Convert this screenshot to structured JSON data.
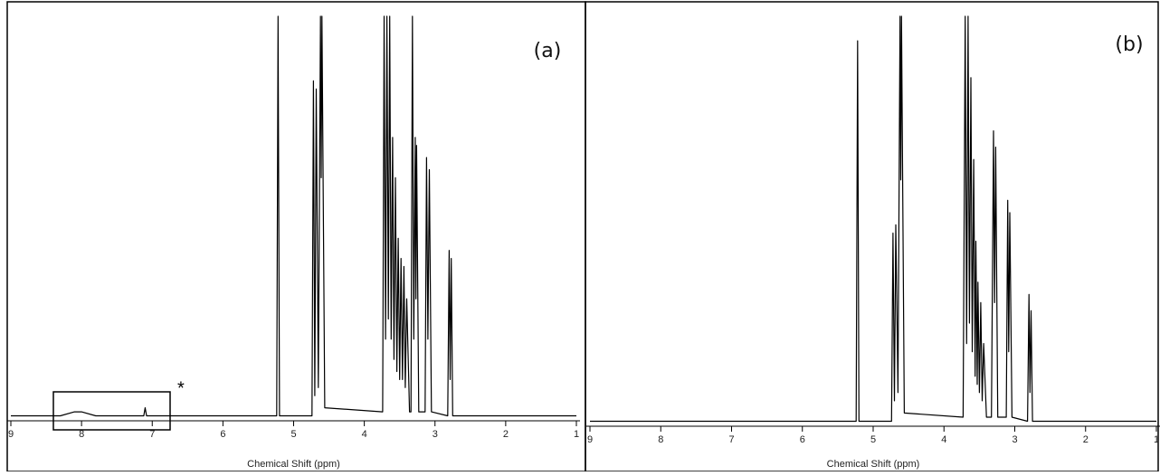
{
  "chart_data": [
    {
      "type": "line",
      "label": "(a)",
      "xlabel": "Chemical Shift (ppm)",
      "annotation": "*",
      "xlim": [
        9,
        1
      ],
      "ylim": [
        0,
        100
      ],
      "xticks": [
        9,
        8,
        7,
        6,
        5,
        4,
        3,
        2,
        1
      ],
      "color": "#000000",
      "x": [
        9.0,
        8.3,
        8.1,
        8.05,
        8.0,
        7.8,
        7.12,
        7.1,
        7.08,
        5.24,
        5.22,
        5.2,
        4.74,
        4.72,
        4.7,
        4.68,
        4.65,
        4.62,
        4.61,
        4.6,
        4.56,
        3.74,
        3.72,
        3.7,
        3.68,
        3.66,
        3.64,
        3.62,
        3.6,
        3.58,
        3.56,
        3.54,
        3.52,
        3.5,
        3.48,
        3.46,
        3.44,
        3.42,
        3.4,
        3.36,
        3.34,
        3.32,
        3.3,
        3.28,
        3.27,
        3.26,
        3.23,
        3.14,
        3.12,
        3.1,
        3.08,
        3.05,
        2.82,
        2.8,
        2.785,
        2.77,
        2.75,
        1.0
      ],
      "values": [
        1,
        1,
        2,
        2,
        2,
        1,
        1,
        3,
        1,
        1,
        100,
        1,
        1,
        84,
        6,
        82,
        8,
        100,
        60,
        100,
        3,
        2,
        100,
        20,
        100,
        25,
        100,
        20,
        70,
        15,
        60,
        12,
        45,
        10,
        40,
        10,
        38,
        8,
        30,
        2,
        2,
        100,
        20,
        70,
        30,
        68,
        2,
        2,
        65,
        20,
        62,
        2,
        1,
        42,
        10,
        40,
        1,
        1
      ]
    },
    {
      "type": "line",
      "label": "(b)",
      "xlabel": "Chemical Shift (ppm)",
      "xlim": [
        9,
        1
      ],
      "ylim": [
        0,
        100
      ],
      "xticks": [
        9,
        8,
        7,
        6,
        5,
        4,
        3,
        2,
        1
      ],
      "color": "#000000",
      "x": [
        9.0,
        5.24,
        5.22,
        5.2,
        4.74,
        4.72,
        4.7,
        4.68,
        4.65,
        4.62,
        4.61,
        4.6,
        4.56,
        3.73,
        3.7,
        3.68,
        3.66,
        3.64,
        3.62,
        3.6,
        3.58,
        3.56,
        3.55,
        3.53,
        3.52,
        3.5,
        3.48,
        3.46,
        3.44,
        3.4,
        3.33,
        3.3,
        3.285,
        3.27,
        3.24,
        3.12,
        3.1,
        3.085,
        3.07,
        3.04,
        2.82,
        2.8,
        2.785,
        2.77,
        2.75,
        1.0
      ],
      "values": [
        1,
        1,
        94,
        1,
        1,
        47,
        6,
        49,
        8,
        100,
        60,
        100,
        3,
        2,
        100,
        20,
        100,
        25,
        85,
        18,
        65,
        12,
        45,
        10,
        35,
        8,
        30,
        6,
        20,
        2,
        2,
        72,
        30,
        68,
        2,
        2,
        55,
        18,
        52,
        2,
        1,
        32,
        8,
        28,
        1,
        1
      ]
    }
  ]
}
